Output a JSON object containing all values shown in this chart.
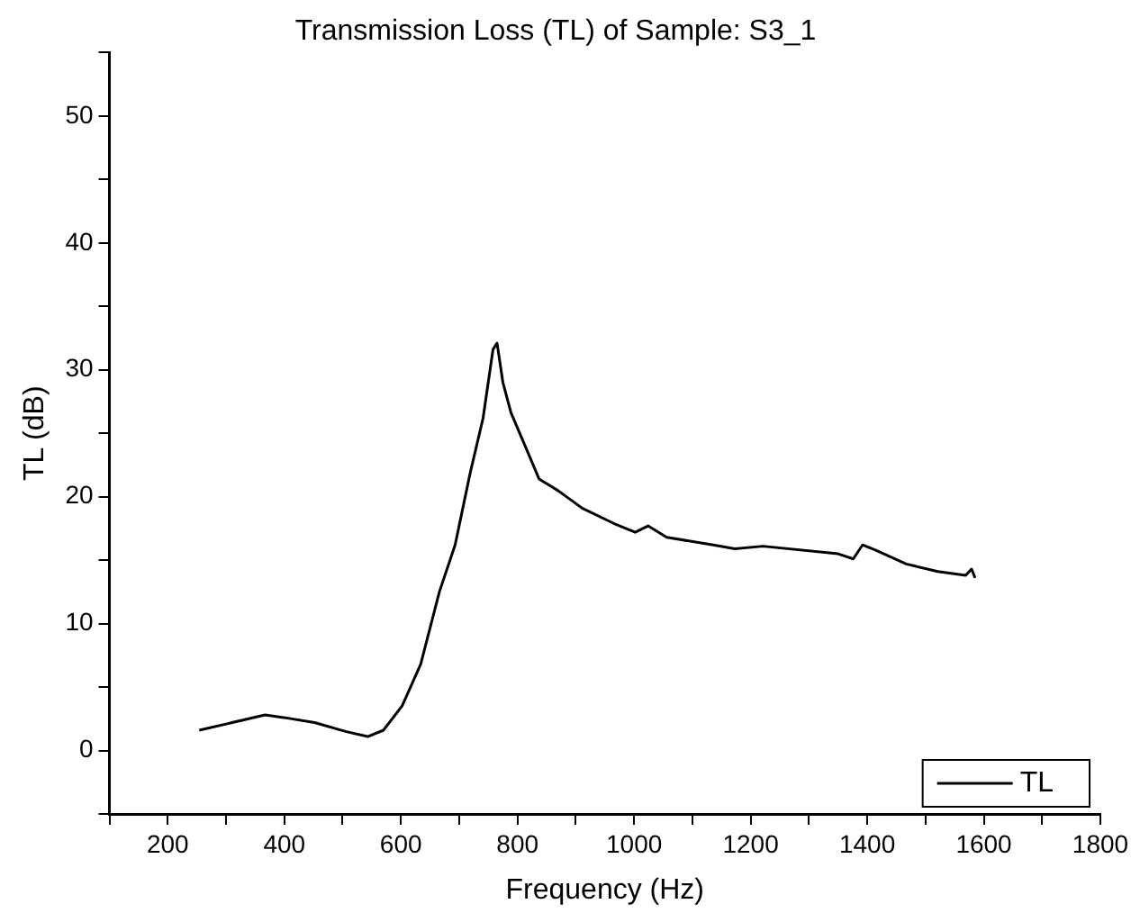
{
  "chart_data": {
    "type": "line",
    "title": "Transmission Loss (TL) of Sample: S3_1",
    "xlabel": "Frequency (Hz)",
    "ylabel": "TL (dB)",
    "xlim": [
      100,
      1800
    ],
    "ylim": [
      -5,
      55
    ],
    "xticks": [
      {
        "value": 100,
        "label": null
      },
      200,
      {
        "value": 300,
        "label": null
      },
      400,
      {
        "value": 500,
        "label": null
      },
      600,
      {
        "value": 700,
        "label": null
      },
      800,
      {
        "value": 900,
        "label": null
      },
      1000,
      {
        "value": 1100,
        "label": null
      },
      1200,
      {
        "value": 1300,
        "label": null
      },
      1400,
      {
        "value": 1500,
        "label": null
      },
      1600,
      {
        "value": 1700,
        "label": null
      },
      1800
    ],
    "yticks": [
      {
        "value": -5,
        "label": null
      },
      0,
      {
        "value": 5,
        "label": null
      },
      10,
      {
        "value": 15,
        "label": null
      },
      20,
      {
        "value": 25,
        "label": null
      },
      30,
      {
        "value": 35,
        "label": null
      },
      40,
      {
        "value": 45,
        "label": null
      },
      50,
      {
        "value": 55,
        "label": null
      }
    ],
    "grid": false,
    "legend": "bottom right",
    "marker": "none",
    "line_style": "solid",
    "series": [
      {
        "name": "TL",
        "color": "#000000",
        "x": [
          254,
          367,
          399,
          452,
          505,
          543,
          570,
          602,
          634,
          666,
          693,
          719,
          741,
          758,
          765,
          775,
          789,
          815,
          837,
          869,
          911,
          965,
          1002,
          1024,
          1056,
          1136,
          1173,
          1221,
          1350,
          1376,
          1392,
          1414,
          1467,
          1521,
          1569,
          1579,
          1585
        ],
        "values": [
          1.6,
          2.8,
          2.6,
          2.2,
          1.5,
          1.1,
          1.6,
          3.5,
          6.8,
          12.5,
          16.2,
          21.9,
          26.2,
          31.6,
          32.1,
          29.0,
          26.6,
          23.8,
          21.4,
          20.5,
          19.1,
          17.9,
          17.2,
          17.7,
          16.8,
          16.2,
          15.9,
          16.1,
          15.5,
          15.1,
          16.2,
          15.8,
          14.7,
          14.1,
          13.8,
          14.3,
          13.6
        ]
      }
    ]
  }
}
